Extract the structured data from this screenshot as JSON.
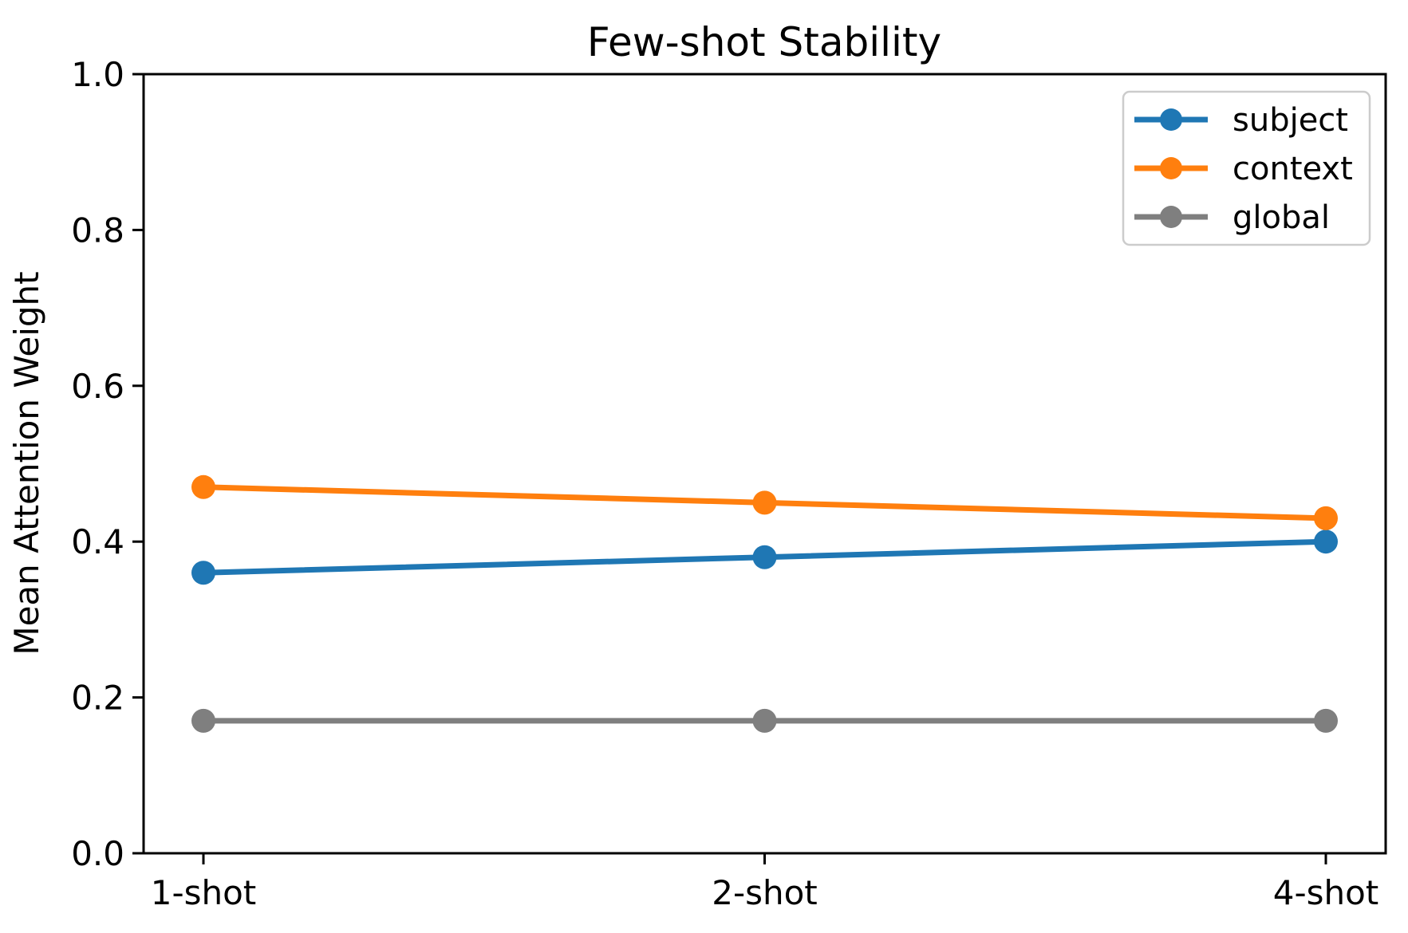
{
  "figure": {
    "background": "#ffffff",
    "axis_color": "#000000",
    "legend_border_color": "#cccccc"
  },
  "chart_data": {
    "type": "line",
    "title": "Few-shot Stability",
    "xlabel": "",
    "ylabel": "Mean Attention Weight",
    "categories": [
      "1-shot",
      "2-shot",
      "4-shot"
    ],
    "series": [
      {
        "name": "subject",
        "color": "#1f77b4",
        "values": [
          0.36,
          0.38,
          0.4
        ]
      },
      {
        "name": "context",
        "color": "#ff7f0e",
        "values": [
          0.47,
          0.45,
          0.43
        ]
      },
      {
        "name": "global",
        "color": "#7f7f7f",
        "values": [
          0.17,
          0.17,
          0.17
        ]
      }
    ],
    "ylim": [
      0.0,
      1.0
    ],
    "yticks": [
      0.0,
      0.2,
      0.4,
      0.6,
      0.8,
      1.0
    ],
    "ytick_labels": [
      "0.0",
      "0.2",
      "0.4",
      "0.6",
      "0.8",
      "1.0"
    ],
    "grid": false,
    "legend_position": "upper right",
    "marker": "o"
  }
}
